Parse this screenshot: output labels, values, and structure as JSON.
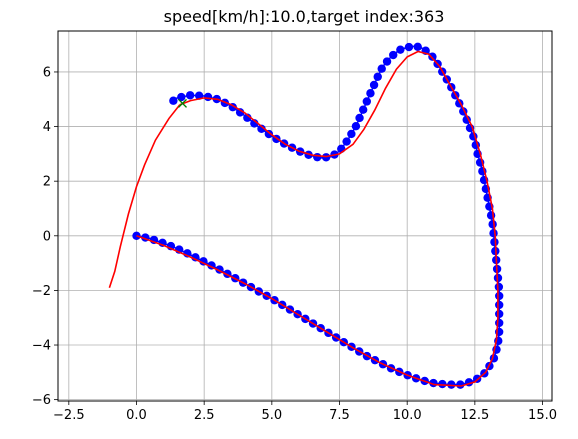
{
  "chart_data": {
    "type": "line",
    "title": "speed[km/h]:10.0,target index:363",
    "xlabel": "",
    "ylabel": "",
    "xlim": [
      -2.9,
      15.35
    ],
    "ylim": [
      -6.05,
      7.5
    ],
    "x_ticks": [
      -2.5,
      0.0,
      2.5,
      5.0,
      7.5,
      10.0,
      12.5,
      15.0
    ],
    "x_tick_labels": [
      "−2.5",
      "0.0",
      "2.5",
      "5.0",
      "7.5",
      "10.0",
      "12.5",
      "15.0"
    ],
    "y_ticks": [
      -6,
      -4,
      -2,
      0,
      2,
      4,
      6
    ],
    "y_tick_labels": [
      "−6",
      "−4",
      "−2",
      "0",
      "2",
      "4",
      "6"
    ],
    "grid": true,
    "series": [
      {
        "role": "reference-course",
        "style": "line",
        "color": "#0000ff",
        "points": [
          [
            0.0,
            0.0
          ],
          [
            0.5,
            -0.1
          ],
          [
            1.0,
            -0.27
          ],
          [
            1.5,
            -0.47
          ],
          [
            2.0,
            -0.7
          ],
          [
            2.5,
            -0.95
          ],
          [
            3.0,
            -1.2
          ],
          [
            3.5,
            -1.47
          ],
          [
            4.0,
            -1.75
          ],
          [
            4.5,
            -2.03
          ],
          [
            5.0,
            -2.3
          ],
          [
            5.5,
            -2.6
          ],
          [
            6.0,
            -2.9
          ],
          [
            6.5,
            -3.2
          ],
          [
            7.0,
            -3.5
          ],
          [
            7.5,
            -3.8
          ],
          [
            8.0,
            -4.1
          ],
          [
            8.5,
            -4.4
          ],
          [
            9.0,
            -4.65
          ],
          [
            9.5,
            -4.9
          ],
          [
            10.0,
            -5.1
          ],
          [
            10.5,
            -5.28
          ],
          [
            11.0,
            -5.4
          ],
          [
            11.5,
            -5.45
          ],
          [
            12.0,
            -5.45
          ],
          [
            12.5,
            -5.3
          ],
          [
            12.9,
            -5.0
          ],
          [
            13.2,
            -4.5
          ],
          [
            13.35,
            -4.0
          ],
          [
            13.4,
            -3.5
          ],
          [
            13.4,
            -3.0
          ],
          [
            13.4,
            -2.5
          ],
          [
            13.4,
            -2.0
          ],
          [
            13.35,
            -1.5
          ],
          [
            13.3,
            -1.0
          ],
          [
            13.25,
            -0.5
          ],
          [
            13.2,
            0.0
          ],
          [
            13.15,
            0.5
          ],
          [
            13.05,
            1.0
          ],
          [
            12.95,
            1.5
          ],
          [
            12.85,
            2.0
          ],
          [
            12.75,
            2.5
          ],
          [
            12.6,
            3.0
          ],
          [
            12.5,
            3.5
          ],
          [
            12.3,
            4.0
          ],
          [
            12.1,
            4.5
          ],
          [
            11.85,
            5.0
          ],
          [
            11.6,
            5.5
          ],
          [
            11.3,
            6.0
          ],
          [
            11.0,
            6.5
          ],
          [
            10.6,
            6.85
          ],
          [
            10.3,
            6.95
          ],
          [
            10.0,
            6.9
          ],
          [
            9.7,
            6.8
          ],
          [
            9.4,
            6.55
          ],
          [
            9.1,
            6.2
          ],
          [
            8.9,
            5.8
          ],
          [
            8.7,
            5.35
          ],
          [
            8.5,
            4.9
          ],
          [
            8.3,
            4.45
          ],
          [
            8.1,
            4.0
          ],
          [
            7.8,
            3.5
          ],
          [
            7.5,
            3.1
          ],
          [
            7.2,
            2.9
          ],
          [
            6.8,
            2.85
          ],
          [
            6.4,
            2.95
          ],
          [
            6.0,
            3.1
          ],
          [
            5.5,
            3.35
          ],
          [
            5.0,
            3.65
          ],
          [
            4.5,
            4.0
          ],
          [
            4.0,
            4.4
          ],
          [
            3.5,
            4.75
          ],
          [
            3.0,
            5.0
          ],
          [
            2.5,
            5.12
          ],
          [
            2.0,
            5.15
          ],
          [
            1.5,
            5.05
          ],
          [
            1.3,
            4.9
          ]
        ]
      },
      {
        "role": "vehicle-trajectory",
        "style": "line",
        "color": "#ff0000",
        "points": [
          [
            1.6,
            4.8
          ],
          [
            1.2,
            4.3
          ],
          [
            0.7,
            3.5
          ],
          [
            0.3,
            2.6
          ],
          [
            0.0,
            1.8
          ],
          [
            -0.3,
            0.8
          ],
          [
            -0.6,
            -0.4
          ],
          [
            -0.8,
            -1.3
          ],
          [
            -1.0,
            -1.9
          ]
        ]
      },
      {
        "role": "trajectory-continuation",
        "style": "line",
        "color": "#ff0000",
        "points": [
          [
            0.0,
            0.0
          ],
          [
            1.0,
            -0.35
          ],
          [
            2.0,
            -0.78
          ],
          [
            3.0,
            -1.25
          ],
          [
            4.0,
            -1.75
          ],
          [
            5.0,
            -2.3
          ],
          [
            6.0,
            -2.9
          ],
          [
            7.0,
            -3.5
          ],
          [
            8.0,
            -4.1
          ],
          [
            9.0,
            -4.65
          ],
          [
            10.0,
            -5.1
          ],
          [
            11.0,
            -5.45
          ],
          [
            12.0,
            -5.5
          ],
          [
            12.5,
            -5.35
          ],
          [
            12.9,
            -5.0
          ],
          [
            13.15,
            -4.5
          ],
          [
            13.3,
            -3.8
          ],
          [
            13.35,
            -3.0
          ],
          [
            13.35,
            -2.0
          ],
          [
            13.3,
            -1.0
          ],
          [
            13.25,
            0.0
          ],
          [
            13.15,
            1.0
          ],
          [
            12.95,
            2.0
          ],
          [
            12.7,
            3.0
          ],
          [
            12.4,
            4.0
          ],
          [
            12.0,
            4.8
          ],
          [
            11.6,
            5.5
          ],
          [
            11.2,
            6.2
          ],
          [
            10.8,
            6.65
          ],
          [
            10.4,
            6.75
          ],
          [
            10.0,
            6.55
          ],
          [
            9.6,
            6.1
          ],
          [
            9.2,
            5.4
          ],
          [
            8.8,
            4.6
          ],
          [
            8.4,
            3.9
          ],
          [
            8.0,
            3.35
          ],
          [
            7.5,
            3.0
          ],
          [
            7.0,
            2.9
          ],
          [
            6.5,
            2.95
          ],
          [
            6.0,
            3.1
          ],
          [
            5.5,
            3.35
          ],
          [
            5.0,
            3.7
          ],
          [
            4.5,
            4.1
          ],
          [
            4.0,
            4.5
          ],
          [
            3.5,
            4.8
          ],
          [
            3.0,
            5.0
          ],
          [
            2.5,
            5.05
          ],
          [
            2.0,
            4.95
          ],
          [
            1.6,
            4.8
          ]
        ]
      },
      {
        "role": "target-point",
        "style": "marker",
        "marker": "x",
        "color": "#008000",
        "points": [
          [
            1.7,
            4.85
          ]
        ]
      }
    ]
  }
}
